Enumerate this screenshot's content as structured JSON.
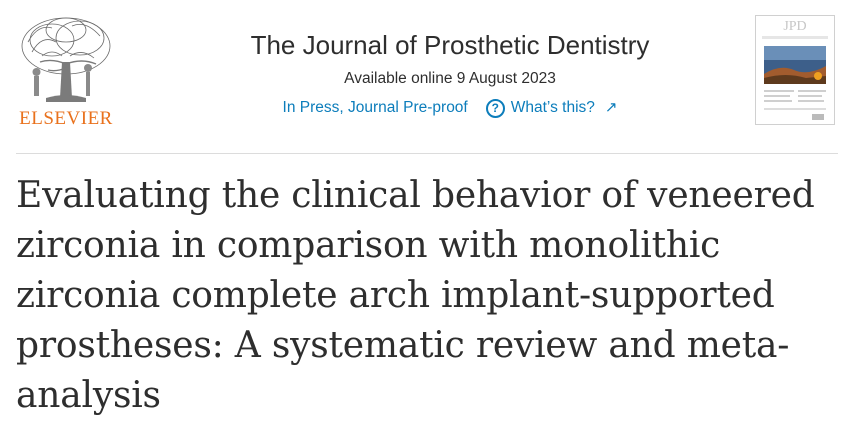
{
  "publisher": {
    "name": "ELSEVIER",
    "color": "#e9711c",
    "logo_icon": "elsevier-tree-icon"
  },
  "journal": {
    "title": "The Journal of Prosthetic Dentistry",
    "available_online": "Available online 9 August 2023",
    "status": "In Press, Journal Pre-proof",
    "help_icon": "question-circle-icon",
    "whats_this": "What’s this?",
    "external_icon": "external-arrow-icon",
    "cover_alt": "journal-cover",
    "link_color": "#0c7dbb"
  },
  "article": {
    "title": "Evaluating the clinical behavior of veneered zirconia in comparison with monolithic zirconia complete arch implant-supported prostheses: A systematic review and meta-analysis"
  }
}
